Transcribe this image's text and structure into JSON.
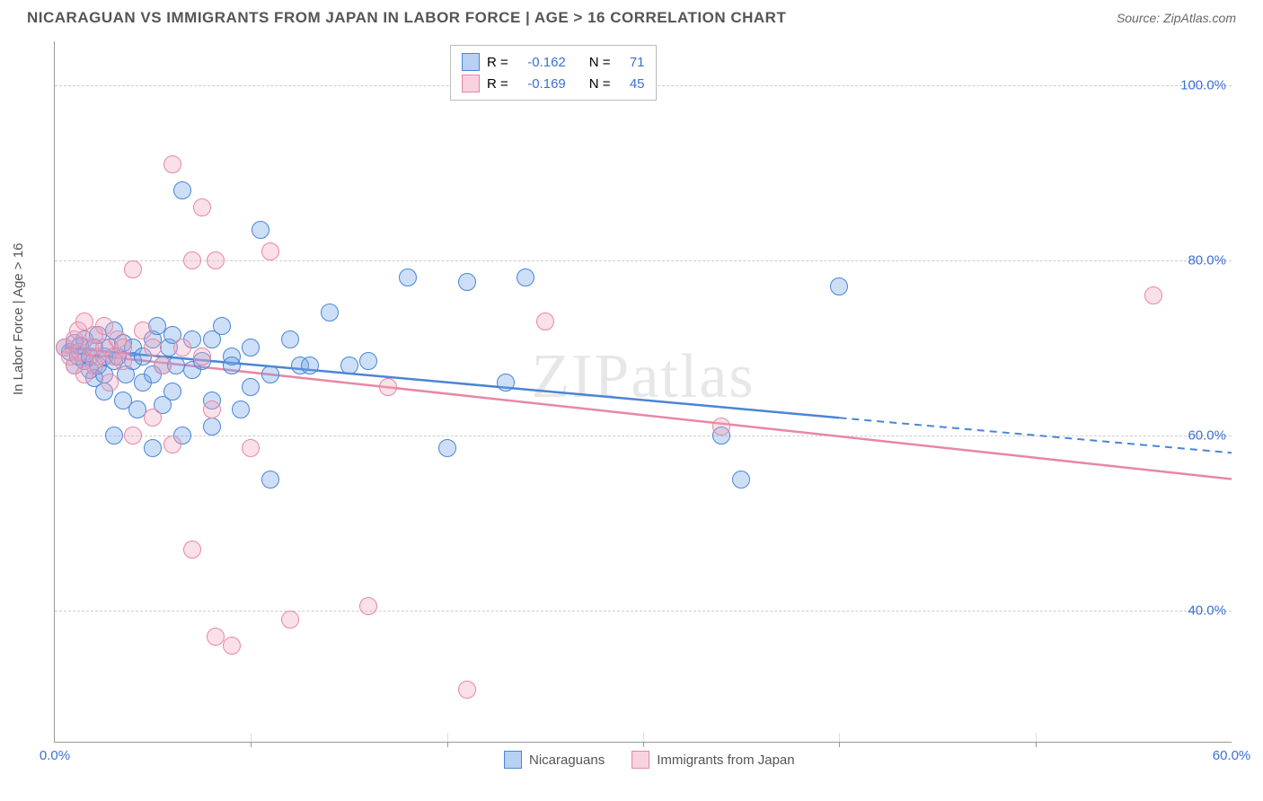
{
  "title": "NICARAGUAN VS IMMIGRANTS FROM JAPAN IN LABOR FORCE | AGE > 16 CORRELATION CHART",
  "source_label": "Source: ",
  "source_name": "ZipAtlas.com",
  "ylabel": "In Labor Force | Age > 16",
  "watermark": "ZIPatlas",
  "chart": {
    "type": "scatter-with-regression",
    "background_color": "#ffffff",
    "grid_color": "#cccccc",
    "axis_color": "#999999",
    "value_color": "#3b6fd6",
    "text_color": "#555555",
    "xlim": [
      0,
      60
    ],
    "ylim": [
      25,
      105
    ],
    "xticks": [
      {
        "v": 0,
        "label": "0.0%"
      },
      {
        "v": 60,
        "label": "60.0%"
      }
    ],
    "xtick_marks": [
      10,
      20,
      30,
      40,
      50
    ],
    "yticks": [
      {
        "v": 40,
        "label": "40.0%"
      },
      {
        "v": 60,
        "label": "60.0%"
      },
      {
        "v": 80,
        "label": "80.0%"
      },
      {
        "v": 100,
        "label": "100.0%"
      }
    ],
    "marker_r": 10,
    "marker_border_w": 1.5,
    "marker_fill_opacity": 0.35,
    "line_width": 2.5
  },
  "series": [
    {
      "data_name": "series-nicaraguans",
      "label": "Nicaraguans",
      "color": "#6fa3e8",
      "border_color": "#4a85d6",
      "R": "-0.162",
      "N": "71",
      "regression": {
        "x1": 0.5,
        "y1": 70,
        "x2": 40,
        "y2": 62,
        "x2_dash": 60,
        "y2_dash": 58
      },
      "points": [
        [
          0.5,
          70
        ],
        [
          0.8,
          69.5
        ],
        [
          1,
          70.5
        ],
        [
          1,
          68
        ],
        [
          1.2,
          69
        ],
        [
          1.3,
          70.2
        ],
        [
          1.5,
          68.5
        ],
        [
          1.5,
          71
        ],
        [
          1.8,
          69
        ],
        [
          1.8,
          67.5
        ],
        [
          2,
          70
        ],
        [
          2,
          66.5
        ],
        [
          2.2,
          68
        ],
        [
          2.2,
          71.5
        ],
        [
          2.5,
          69
        ],
        [
          2.5,
          67
        ],
        [
          2.5,
          65
        ],
        [
          2.8,
          70
        ],
        [
          3,
          68.5
        ],
        [
          3,
          72
        ],
        [
          3,
          60
        ],
        [
          3.2,
          69
        ],
        [
          3.5,
          70.5
        ],
        [
          3.5,
          64
        ],
        [
          3.6,
          67
        ],
        [
          4,
          68.5
        ],
        [
          4,
          70
        ],
        [
          4.2,
          63
        ],
        [
          4.5,
          69
        ],
        [
          4.5,
          66
        ],
        [
          5,
          71
        ],
        [
          5,
          67
        ],
        [
          5,
          58.5
        ],
        [
          5.2,
          72.5
        ],
        [
          5.5,
          68
        ],
        [
          5.5,
          63.5
        ],
        [
          5.8,
          70
        ],
        [
          6,
          71.5
        ],
        [
          6,
          65
        ],
        [
          6.2,
          68
        ],
        [
          6.5,
          88
        ],
        [
          6.5,
          60
        ],
        [
          7,
          71
        ],
        [
          7,
          67.5
        ],
        [
          7.5,
          68.5
        ],
        [
          8,
          71
        ],
        [
          8,
          64
        ],
        [
          8,
          61
        ],
        [
          8.5,
          72.5
        ],
        [
          9,
          69
        ],
        [
          9,
          68
        ],
        [
          9.5,
          63
        ],
        [
          10,
          70
        ],
        [
          10,
          65.5
        ],
        [
          10.5,
          83.5
        ],
        [
          11,
          67
        ],
        [
          11,
          55
        ],
        [
          12,
          71
        ],
        [
          12.5,
          68
        ],
        [
          13,
          68
        ],
        [
          14,
          74
        ],
        [
          15,
          68
        ],
        [
          16,
          68.5
        ],
        [
          18,
          78
        ],
        [
          20,
          58.5
        ],
        [
          21,
          77.5
        ],
        [
          23,
          66
        ],
        [
          24,
          78
        ],
        [
          34,
          60
        ],
        [
          35,
          55
        ],
        [
          40,
          77
        ]
      ]
    },
    {
      "data_name": "series-japan",
      "label": "Immigrants from Japan",
      "color": "#f2a6bd",
      "border_color": "#e887a5",
      "R": "-0.169",
      "N": "45",
      "regression": {
        "x1": 0.5,
        "y1": 69.5,
        "x2": 60,
        "y2": 55,
        "x2_dash": 60,
        "y2_dash": 55
      },
      "points": [
        [
          0.5,
          70
        ],
        [
          0.8,
          69
        ],
        [
          1,
          71
        ],
        [
          1,
          68
        ],
        [
          1.2,
          72
        ],
        [
          1.3,
          69.5
        ],
        [
          1.5,
          73
        ],
        [
          1.5,
          67
        ],
        [
          1.8,
          70
        ],
        [
          2,
          71.5
        ],
        [
          2,
          68
        ],
        [
          2.2,
          69
        ],
        [
          2.5,
          70
        ],
        [
          2.5,
          72.5
        ],
        [
          2.8,
          66
        ],
        [
          3,
          69
        ],
        [
          3.2,
          71
        ],
        [
          3.5,
          70
        ],
        [
          3.5,
          68.5
        ],
        [
          4,
          79
        ],
        [
          4,
          60
        ],
        [
          4.5,
          72
        ],
        [
          5,
          70
        ],
        [
          5,
          62
        ],
        [
          5.5,
          68
        ],
        [
          6,
          91
        ],
        [
          6,
          59
        ],
        [
          6.5,
          70
        ],
        [
          7,
          80
        ],
        [
          7,
          47
        ],
        [
          7.5,
          86
        ],
        [
          8,
          63
        ],
        [
          8.2,
          80
        ],
        [
          8.2,
          37
        ],
        [
          9,
          36
        ],
        [
          10,
          58.5
        ],
        [
          11,
          81
        ],
        [
          12,
          39
        ],
        [
          16,
          40.5
        ],
        [
          17,
          65.5
        ],
        [
          21,
          31
        ],
        [
          25,
          73
        ],
        [
          34,
          61
        ],
        [
          56,
          76
        ],
        [
          7.5,
          69
        ]
      ]
    }
  ],
  "legend_top_labels": {
    "R_label": "R  =",
    "N_label": "N  ="
  },
  "legend_bottom": [
    {
      "swatch": 0,
      "label": "Nicaraguans"
    },
    {
      "swatch": 1,
      "label": "Immigrants from Japan"
    }
  ]
}
